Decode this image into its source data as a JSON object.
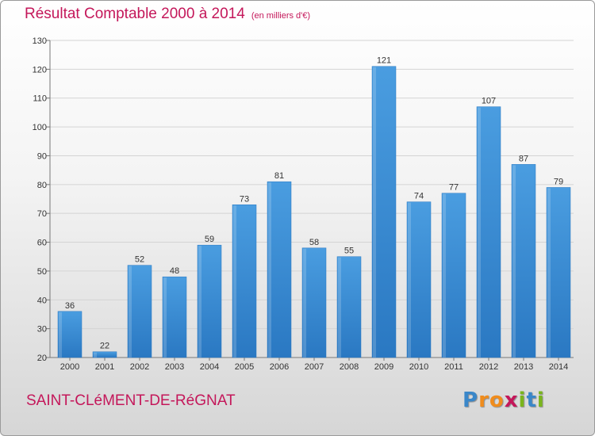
{
  "header": {
    "title": "Résultat Comptable 2000 à 2014",
    "subtitle": "(en milliers d'€)"
  },
  "footer": {
    "commune": "SAINT-CLéMENT-DE-RéGNAT",
    "logo_letters": [
      "P",
      "r",
      "o",
      "x",
      "i",
      "t",
      "i"
    ],
    "logo_colors": [
      "#3a87c9",
      "#f08c1c",
      "#f08c1c",
      "#c4175a",
      "#7ab51d",
      "#3a87c9",
      "#7ab51d"
    ]
  },
  "chart_data": {
    "type": "bar",
    "title": "Résultat Comptable 2000 à 2014",
    "categories": [
      "2000",
      "2001",
      "2002",
      "2003",
      "2004",
      "2005",
      "2006",
      "2007",
      "2008",
      "2009",
      "2010",
      "2011",
      "2012",
      "2013",
      "2014"
    ],
    "values": [
      36,
      22,
      52,
      48,
      59,
      73,
      81,
      58,
      55,
      121,
      74,
      77,
      107,
      87,
      79
    ],
    "ylim": [
      20,
      130
    ],
    "yticks": [
      20,
      30,
      40,
      50,
      60,
      70,
      80,
      90,
      100,
      110,
      120,
      130
    ],
    "grid": true,
    "xlabel": "",
    "ylabel": "",
    "bar_color": "#4a9de0",
    "bar_color_dark": "#2a78c2"
  }
}
